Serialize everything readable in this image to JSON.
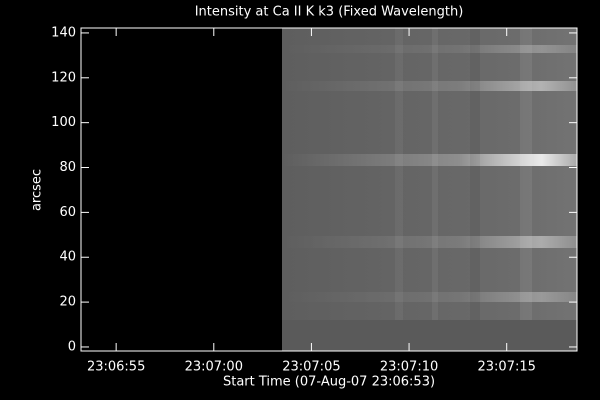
{
  "chart_data": {
    "type": "image",
    "title": "Intensity at Ca II K k3 (Fixed Wavelength)",
    "x_label": "Start Time (07-Aug-07 23:06:53)",
    "y_label": "arcsec",
    "xlim": [
      0.2,
      25.6
    ],
    "xticks": [
      {
        "value": 2,
        "label": "23:06:55"
      },
      {
        "value": 7,
        "label": "23:07:00"
      },
      {
        "value": 12,
        "label": "23:07:05"
      },
      {
        "value": 17,
        "label": "23:07:10"
      },
      {
        "value": 22,
        "label": "23:07:15"
      }
    ],
    "ylim": [
      -1.8,
      142.2
    ],
    "yticks": [
      0,
      20,
      40,
      60,
      80,
      100,
      120,
      140
    ]
  }
}
